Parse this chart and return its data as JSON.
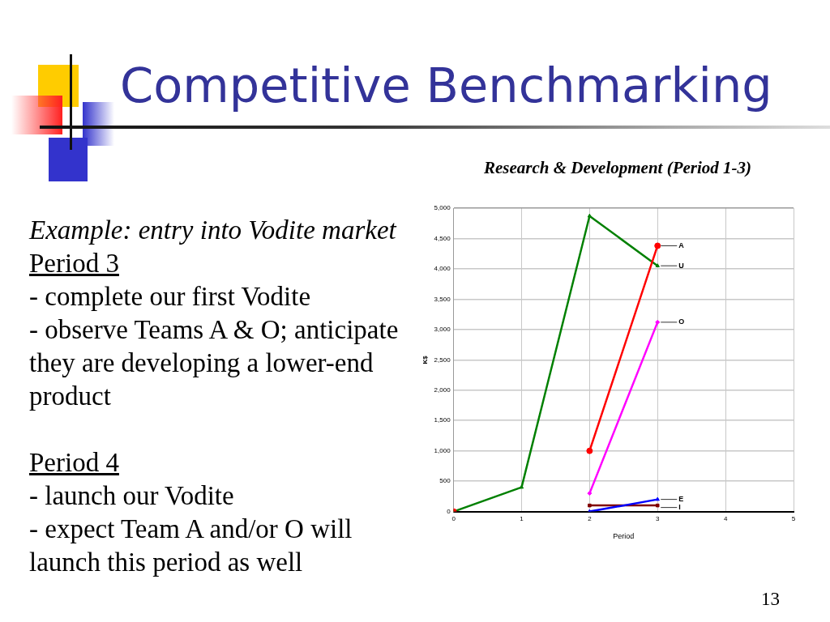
{
  "chart_data": {
    "type": "line",
    "title": "Competitive Benchmarking",
    "subtitle": "Research & Development (Period 1-3)",
    "xlabel": "Period",
    "ylabel": "K$",
    "x": [
      0,
      1,
      2,
      3
    ],
    "series": [
      {
        "name": "A",
        "color": "#ff0000",
        "values": [
          0,
          null,
          1000,
          4380
        ],
        "marker": "circle"
      },
      {
        "name": "U",
        "color": "#008000",
        "values": [
          0,
          400,
          4870,
          4050
        ],
        "marker": "triangle"
      },
      {
        "name": "O",
        "color": "#ff00ff",
        "values": [
          null,
          null,
          300,
          3120
        ],
        "marker": "diamond"
      },
      {
        "name": "E",
        "color": "#0000ff",
        "values": [
          null,
          null,
          0,
          200
        ],
        "marker": "triangle"
      },
      {
        "name": "I",
        "color": "#800000",
        "values": [
          null,
          null,
          100,
          100
        ],
        "marker": "square"
      }
    ],
    "xlim": [
      0,
      5
    ],
    "xticks": [
      0,
      1,
      2,
      3,
      4,
      5
    ],
    "ylim": [
      0,
      5000
    ],
    "yticks": [
      0,
      500,
      {
        "value": 1000,
        "label": "1,000"
      },
      {
        "value": 1500,
        "label": "1,500"
      },
      {
        "value": 2000,
        "label": "2,000"
      },
      {
        "value": 2500,
        "label": "2,500"
      },
      {
        "value": 3000,
        "label": "3,000"
      },
      {
        "value": 3500,
        "label": "3,500"
      },
      {
        "value": 4000,
        "label": "4,000"
      },
      {
        "value": 4500,
        "label": "4,500"
      },
      {
        "value": 5000,
        "label": "5,000"
      }
    ],
    "grid": true,
    "annotations": [
      "Example: entry into Vodite market",
      "Period 3",
      "- complete our first Vodite",
      "- observe Teams A & O; anticipate they are developing a lower-end product",
      "Period 4",
      "- launch our Vodite",
      "- expect Team A and/or O will launch this period as well",
      "13"
    ]
  }
}
